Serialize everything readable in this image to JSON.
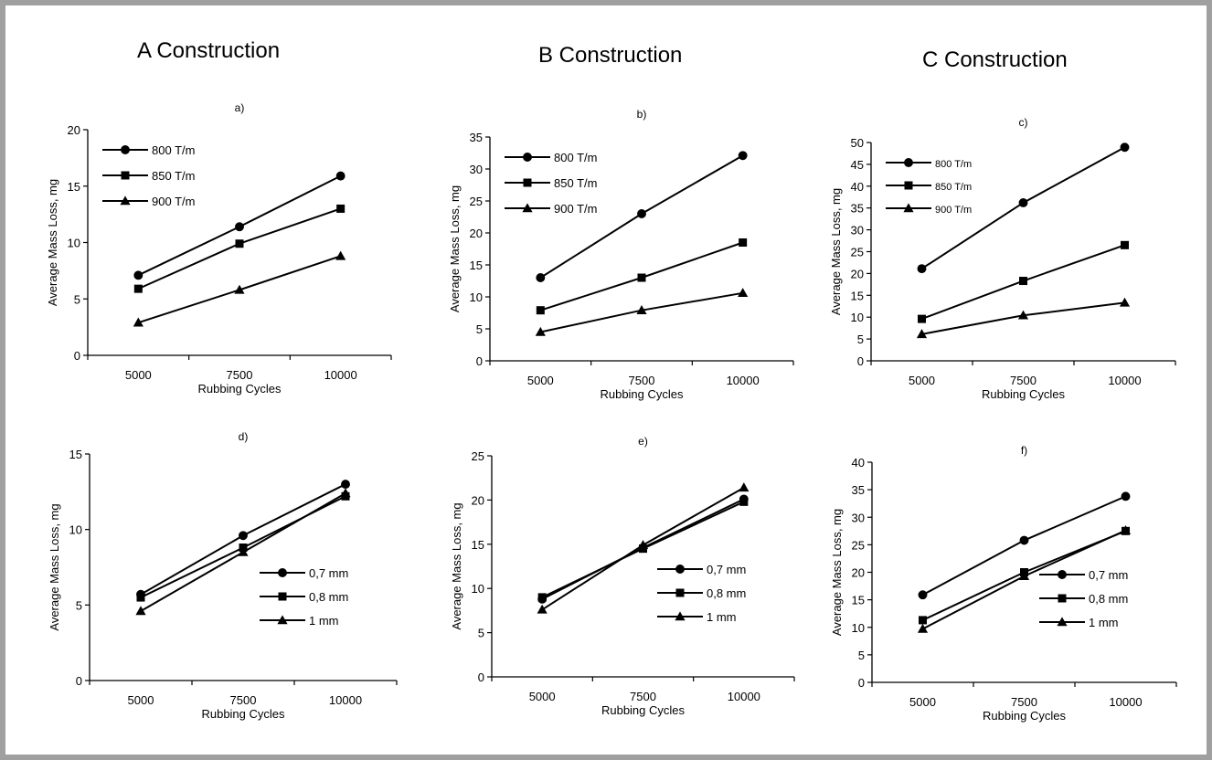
{
  "headers": [
    "A Construction",
    "B Construction",
    "C Construction"
  ],
  "chart_data": [
    {
      "type": "line",
      "title": "a)",
      "xlabel": "Rubbing Cycles",
      "ylabel": "Average Mass Loss, mg",
      "categories": [
        "5000",
        "7500",
        "10000"
      ],
      "ylim": [
        0,
        20
      ],
      "yticks": [
        0,
        5,
        10,
        15,
        20
      ],
      "legend_position": "top-left",
      "series": [
        {
          "name": "800 T/m",
          "marker": "circle",
          "values": [
            7.1,
            11.4,
            15.9
          ]
        },
        {
          "name": "850 T/m",
          "marker": "square",
          "values": [
            5.9,
            9.9,
            13.0
          ]
        },
        {
          "name": "900 T/m",
          "marker": "triangle",
          "values": [
            2.9,
            5.8,
            8.8
          ]
        }
      ]
    },
    {
      "type": "line",
      "title": "b)",
      "xlabel": "Rubbing Cycles",
      "ylabel": "Average Mass Loss, mg",
      "categories": [
        "5000",
        "7500",
        "10000"
      ],
      "ylim": [
        0,
        35
      ],
      "yticks": [
        0,
        5,
        10,
        15,
        20,
        25,
        30,
        35
      ],
      "legend_position": "top-left",
      "series": [
        {
          "name": "800 T/m",
          "marker": "circle",
          "values": [
            13.0,
            23.0,
            32.1
          ]
        },
        {
          "name": "850 T/m",
          "marker": "square",
          "values": [
            7.9,
            13.0,
            18.5
          ]
        },
        {
          "name": "900 T/m",
          "marker": "triangle",
          "values": [
            4.5,
            7.9,
            10.6
          ]
        }
      ]
    },
    {
      "type": "line",
      "title": "c)",
      "xlabel": "Rubbing Cycles",
      "ylabel": "Average Mass Loss, mg",
      "categories": [
        "5000",
        "7500",
        "10000"
      ],
      "ylim": [
        0,
        50
      ],
      "yticks": [
        0,
        5,
        10,
        15,
        20,
        25,
        30,
        35,
        40,
        45,
        50
      ],
      "legend_position": "top-left",
      "series": [
        {
          "name": "800 T/m",
          "marker": "circle",
          "values": [
            21.1,
            36.2,
            48.9
          ]
        },
        {
          "name": "850 T/m",
          "marker": "square",
          "values": [
            9.6,
            18.3,
            26.5
          ]
        },
        {
          "name": "900 T/m",
          "marker": "triangle",
          "values": [
            6.1,
            10.4,
            13.3
          ]
        }
      ]
    },
    {
      "type": "line",
      "title": "d)",
      "xlabel": "Rubbing Cycles",
      "ylabel": "Average Mass Loss, mg",
      "categories": [
        "5000",
        "7500",
        "10000"
      ],
      "ylim": [
        0,
        15
      ],
      "yticks": [
        0,
        5,
        10,
        15
      ],
      "legend_position": "bottom-right",
      "series": [
        {
          "name": "0,7 mm",
          "marker": "circle",
          "values": [
            5.7,
            9.6,
            13.0
          ]
        },
        {
          "name": "0,8 mm",
          "marker": "square",
          "values": [
            5.5,
            8.8,
            12.2
          ]
        },
        {
          "name": "1 mm",
          "marker": "triangle",
          "values": [
            4.6,
            8.5,
            12.4
          ]
        }
      ]
    },
    {
      "type": "line",
      "title": "e)",
      "xlabel": "Rubbing Cycles",
      "ylabel": "Average Mass Loss, mg",
      "categories": [
        "5000",
        "7500",
        "10000"
      ],
      "ylim": [
        0,
        25
      ],
      "yticks": [
        0,
        5,
        10,
        15,
        20,
        25
      ],
      "legend_position": "bottom-right",
      "series": [
        {
          "name": "0,7 mm",
          "marker": "circle",
          "values": [
            8.8,
            14.6,
            20.1
          ]
        },
        {
          "name": "0,8 mm",
          "marker": "square",
          "values": [
            9.0,
            14.5,
            19.8
          ]
        },
        {
          "name": "1 mm",
          "marker": "triangle",
          "values": [
            7.6,
            14.9,
            21.4
          ]
        }
      ]
    },
    {
      "type": "line",
      "title": "f)",
      "xlabel": "Rubbing Cycles",
      "ylabel": "Average Mass Loss, mg",
      "categories": [
        "5000",
        "7500",
        "10000"
      ],
      "ylim": [
        0,
        40
      ],
      "yticks": [
        0,
        5,
        10,
        15,
        20,
        25,
        30,
        35,
        40
      ],
      "legend_position": "bottom-right",
      "series": [
        {
          "name": "0,7 mm",
          "marker": "circle",
          "values": [
            15.9,
            25.8,
            33.8
          ]
        },
        {
          "name": "0,8 mm",
          "marker": "square",
          "values": [
            11.3,
            20.0,
            27.5
          ]
        },
        {
          "name": "1 mm",
          "marker": "triangle",
          "values": [
            9.7,
            19.3,
            27.6
          ]
        }
      ]
    }
  ]
}
